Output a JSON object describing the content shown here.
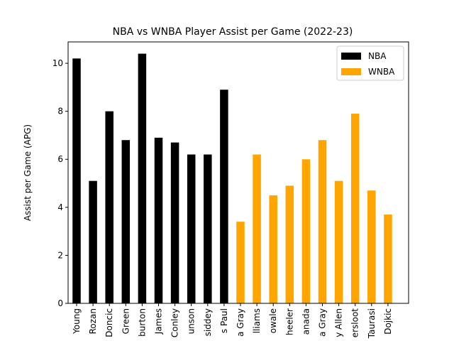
{
  "chart_data": {
    "type": "bar",
    "title": "NBA vs WNBA Player Assist per Game (2022-23)",
    "y_label": "Assist per Game (APG)",
    "categories": [
      "Young",
      "Rozan",
      "Doncic",
      "Green",
      "burton",
      "James",
      "Conley",
      "unson",
      "siddey",
      "s Paul",
      "a Gray",
      "lliams",
      "owale",
      "heeler",
      "anada",
      "a Gray",
      "y Allen",
      "ersloot",
      "Taurasi",
      "Dojkic"
    ],
    "series": [
      {
        "name": "NBA",
        "color": "#000000",
        "values": [
          10.2,
          5.1,
          8.0,
          6.8,
          10.4,
          6.9,
          6.7,
          6.2,
          6.2,
          8.9,
          null,
          null,
          null,
          null,
          null,
          null,
          null,
          null,
          null,
          null
        ]
      },
      {
        "name": "WNBA",
        "color": "#ffa500",
        "values": [
          null,
          null,
          null,
          null,
          null,
          null,
          null,
          null,
          null,
          null,
          3.4,
          6.2,
          4.5,
          4.9,
          6.0,
          6.8,
          5.1,
          7.9,
          4.7,
          3.7
        ]
      }
    ],
    "ylim": [
      0,
      10.89
    ],
    "yticks": [
      0,
      2,
      4,
      6,
      8,
      10
    ],
    "legend": "upper right"
  }
}
